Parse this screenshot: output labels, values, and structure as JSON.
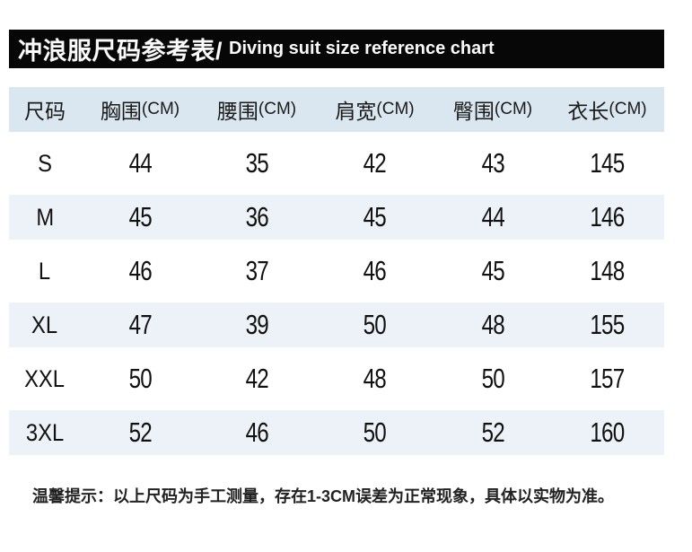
{
  "title": {
    "zh": "冲浪服尺码参考表/",
    "en": "Diving suit size reference chart"
  },
  "table": {
    "columns": [
      {
        "label": "尺码",
        "unit": ""
      },
      {
        "label": "胸围",
        "unit": "(CM)"
      },
      {
        "label": "腰围",
        "unit": "(CM)"
      },
      {
        "label": "肩宽",
        "unit": "(CM)"
      },
      {
        "label": "臀围",
        "unit": "(CM)"
      },
      {
        "label": "衣长",
        "unit": "(CM)"
      }
    ],
    "rows": [
      {
        "size": "S",
        "values": [
          "44",
          "35",
          "42",
          "43",
          "145"
        ]
      },
      {
        "size": "M",
        "values": [
          "45",
          "36",
          "45",
          "44",
          "146"
        ]
      },
      {
        "size": "L",
        "values": [
          "46",
          "37",
          "46",
          "45",
          "148"
        ]
      },
      {
        "size": "XL",
        "values": [
          "47",
          "39",
          "50",
          "48",
          "155"
        ]
      },
      {
        "size": "XXL",
        "values": [
          "50",
          "42",
          "48",
          "50",
          "157"
        ]
      },
      {
        "size": "3XL",
        "values": [
          "52",
          "46",
          "50",
          "52",
          "160"
        ]
      }
    ]
  },
  "note": "温馨提示：以上尺码为手工测量，存在1-3CM误差为正常现象，具体以实物为准。",
  "colors": {
    "title_bar_bg": "#070707",
    "title_text": "#fafafa",
    "table_header_bg": "#dbe7f0",
    "row_alt_bg": "#ecf2f8",
    "row_bg": "#ffffff",
    "text": "#141414"
  },
  "chart_data": {
    "type": "table",
    "title": "冲浪服尺码参考表/ Diving suit size reference chart",
    "columns": [
      "尺码",
      "胸围(CM)",
      "腰围(CM)",
      "肩宽(CM)",
      "臀围(CM)",
      "衣长(CM)"
    ],
    "rows": [
      [
        "S",
        44,
        35,
        42,
        43,
        145
      ],
      [
        "M",
        45,
        36,
        45,
        44,
        146
      ],
      [
        "L",
        46,
        37,
        46,
        45,
        148
      ],
      [
        "XL",
        47,
        39,
        50,
        48,
        155
      ],
      [
        "XXL",
        50,
        42,
        48,
        50,
        157
      ],
      [
        "3XL",
        52,
        46,
        50,
        52,
        160
      ]
    ],
    "note": "温馨提示：以上尺码为手工测量，存在1-3CM误差为正常现象，具体以实物为准。",
    "layout": {
      "zebra_stripes": true,
      "grid": false,
      "header_position": "top"
    }
  }
}
